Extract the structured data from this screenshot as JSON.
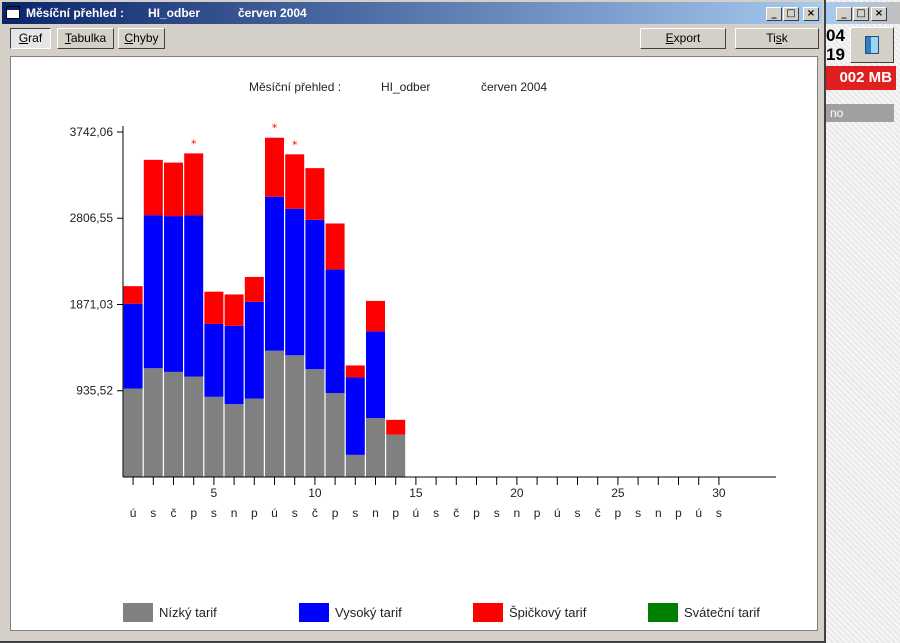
{
  "window": {
    "title_parts": [
      "Měsíční přehled :",
      "HI_odber",
      "červen 2004"
    ],
    "controls": {
      "minimize": "_",
      "maximize": "□",
      "close": "×"
    }
  },
  "toolbar": {
    "tabs": [
      {
        "prefix": "",
        "accel": "G",
        "rest": "raf"
      },
      {
        "prefix": "",
        "accel": "T",
        "rest": "abulka"
      },
      {
        "prefix": "",
        "accel": "C",
        "rest": "hyby"
      }
    ],
    "export": {
      "prefix": "",
      "accel": "E",
      "rest": "xport"
    },
    "print": {
      "prefix": "Ti",
      "accel": "s",
      "rest": "k"
    }
  },
  "side_panel": {
    "digits_top": "04",
    "digits_bottom": "19",
    "memory_label": "002 MB",
    "gray_label": "no"
  },
  "chart_data": {
    "type": "bar",
    "stacked": true,
    "title_parts": [
      "Měsíční přehled :",
      "HI_odber",
      "červen 2004"
    ],
    "y_ticks": [
      "3742,06",
      "2806,55",
      "1871,03",
      "935,52"
    ],
    "y_tick_values": [
      3742.06,
      2806.55,
      1871.03,
      935.52
    ],
    "ylim": [
      0,
      3742.06
    ],
    "x_ticks": [
      "5",
      "10",
      "15",
      "20",
      "25",
      "30"
    ],
    "x_tick_days": [
      5,
      10,
      15,
      20,
      25,
      30
    ],
    "day_letters": [
      "ú",
      "s",
      "č",
      "p",
      "s",
      "n",
      "p",
      "ú",
      "s",
      "č",
      "p",
      "s",
      "n",
      "p",
      "ú",
      "s",
      "č",
      "p",
      "s",
      "n",
      "p",
      "ú",
      "s",
      "č",
      "p",
      "s",
      "n",
      "p",
      "ú",
      "s"
    ],
    "days": [
      1,
      2,
      3,
      4,
      5,
      6,
      7,
      8,
      9,
      10,
      11,
      12,
      13,
      14,
      15,
      16,
      17,
      18,
      19,
      20,
      21,
      22,
      23,
      24,
      25,
      26,
      27,
      28,
      29,
      30
    ],
    "marker": "*",
    "markers_days": [
      4,
      8,
      9
    ],
    "legend_position": "bottom",
    "series": [
      {
        "name": "Nízký tarif",
        "color": "#808080",
        "values": [
          960,
          1180,
          1140,
          1090,
          870,
          790,
          850,
          1370,
          1320,
          1170,
          910,
          240,
          640,
          460,
          0,
          0,
          0,
          0,
          0,
          0,
          0,
          0,
          0,
          0,
          0,
          0,
          0,
          0,
          0,
          0
        ]
      },
      {
        "name": "Vysoký tarif",
        "color": "#0000ff",
        "values": [
          920,
          1660,
          1690,
          1750,
          790,
          850,
          1050,
          1670,
          1590,
          1620,
          1340,
          840,
          940,
          0,
          0,
          0,
          0,
          0,
          0,
          0,
          0,
          0,
          0,
          0,
          0,
          0,
          0,
          0,
          0,
          0
        ]
      },
      {
        "name": "Špičkový tarif",
        "color": "#ff0000",
        "values": [
          190,
          600,
          580,
          670,
          350,
          340,
          270,
          640,
          590,
          560,
          500,
          130,
          330,
          160,
          0,
          0,
          0,
          0,
          0,
          0,
          0,
          0,
          0,
          0,
          0,
          0,
          0,
          0,
          0,
          0
        ]
      },
      {
        "name": "Sváteční tarif",
        "color": "#008000",
        "values": [
          0,
          0,
          0,
          0,
          0,
          0,
          0,
          0,
          0,
          0,
          0,
          0,
          0,
          0,
          0,
          0,
          0,
          0,
          0,
          0,
          0,
          0,
          0,
          0,
          0,
          0,
          0,
          0,
          0,
          0
        ]
      }
    ]
  }
}
